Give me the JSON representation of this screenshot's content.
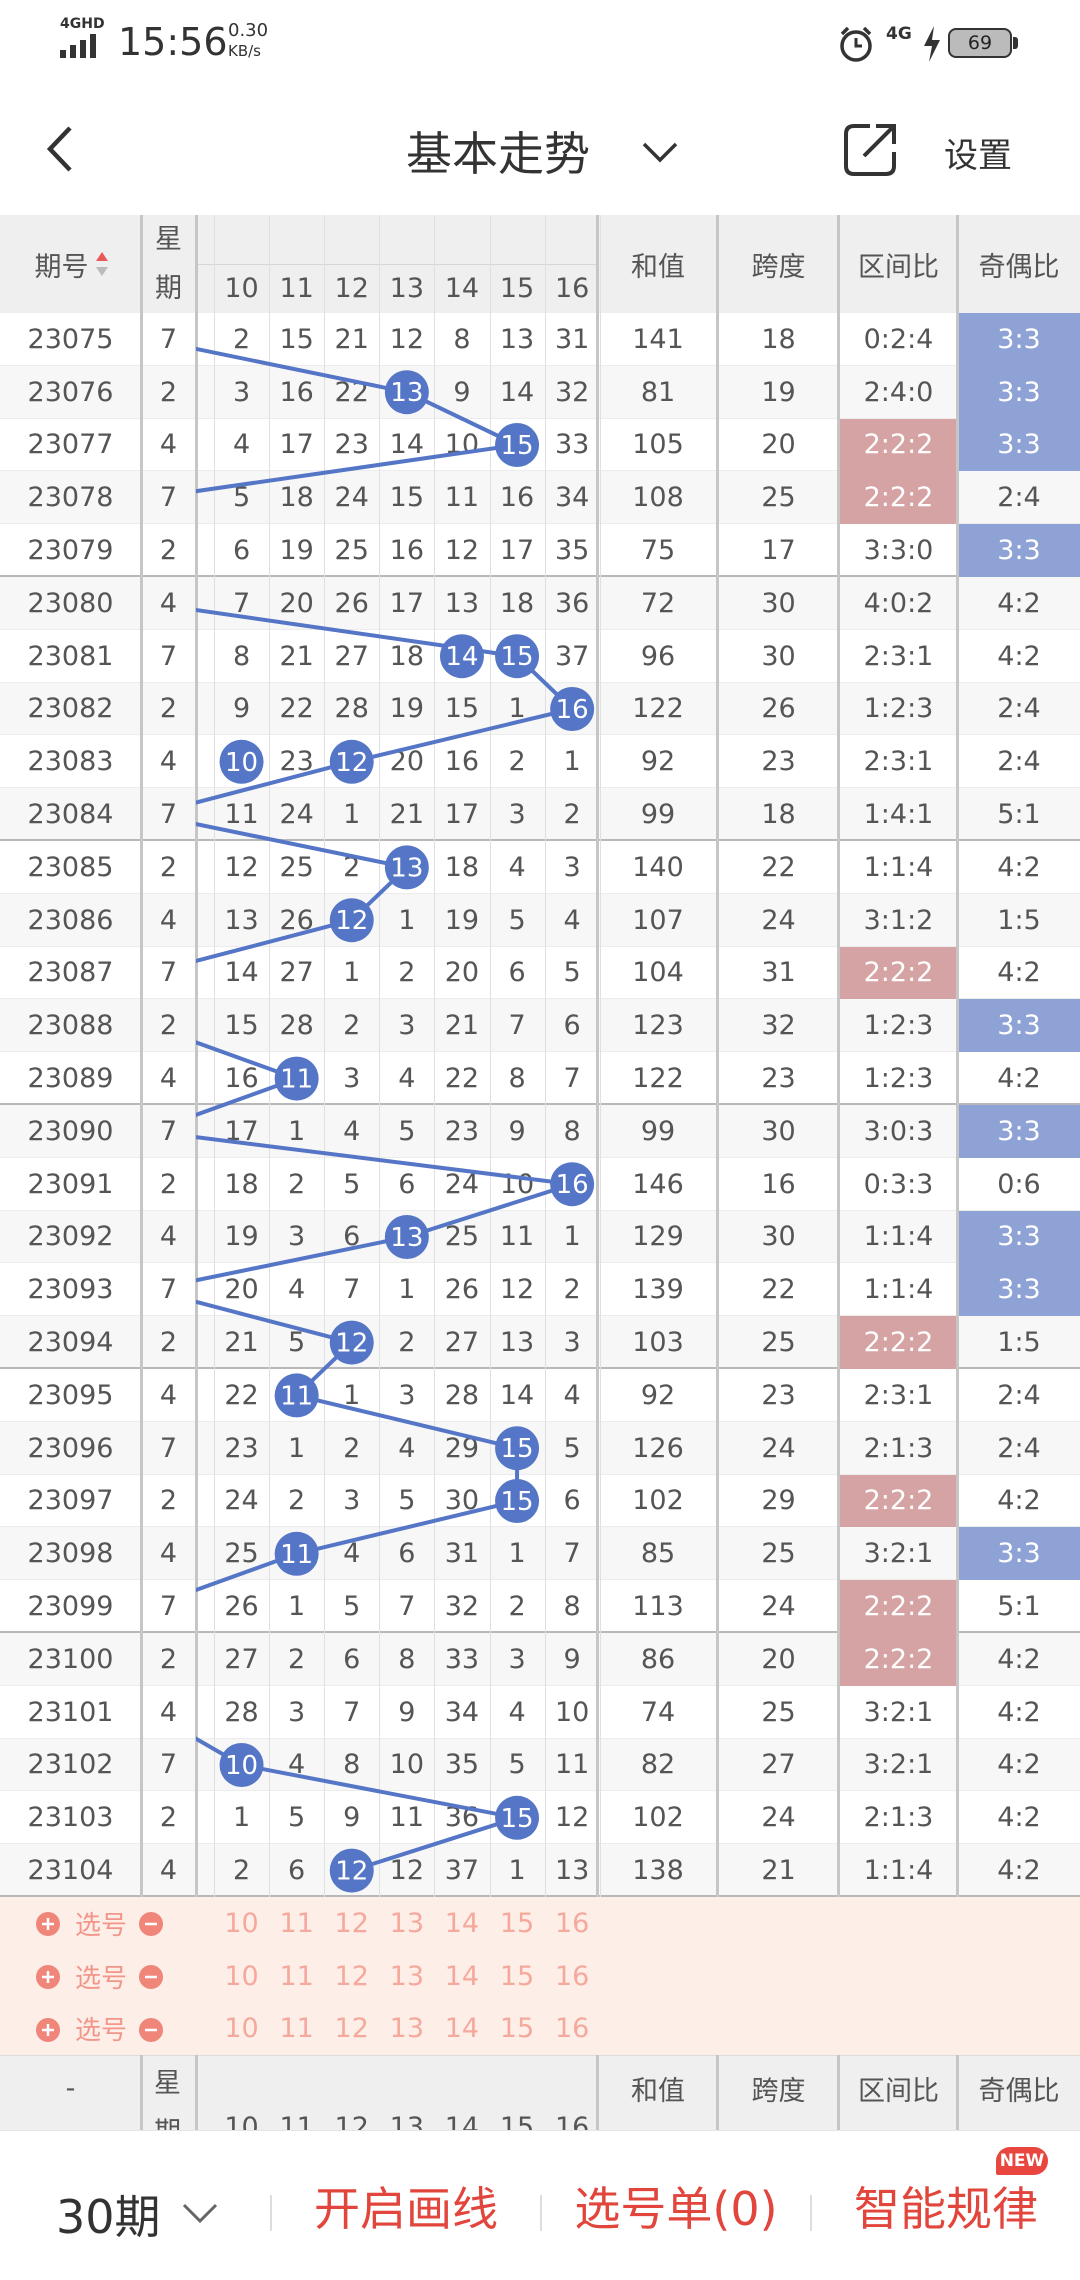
{
  "status_bar": {
    "network": "4GHD",
    "time": "15:56",
    "speed": "0.30",
    "speed_unit": "KB/s",
    "network2": "4G",
    "battery": "69"
  },
  "nav": {
    "title": "基本走势",
    "action": "设置"
  },
  "table": {
    "headers": {
      "issue": "期号",
      "weekday": "星期",
      "sum": "和值",
      "span": "跨度",
      "zone_ratio": "区间比",
      "odd_even": "奇偶比"
    },
    "number_columns": [
      10,
      11,
      12,
      13,
      14,
      15,
      16
    ],
    "rows": [
      {
        "issue": 23075,
        "weekday": 7,
        "numbers": [
          2,
          15,
          21,
          12,
          8,
          13,
          31
        ],
        "sum": 141,
        "span": 18,
        "zone_ratio": "0:2:4",
        "odd_even": "3:3"
      },
      {
        "issue": 23076,
        "weekday": 2,
        "numbers": [
          3,
          16,
          22,
          13,
          9,
          14,
          32
        ],
        "sum": 81,
        "span": 19,
        "zone_ratio": "2:4:0",
        "odd_even": "3:3"
      },
      {
        "issue": 23077,
        "weekday": 4,
        "numbers": [
          4,
          17,
          23,
          14,
          10,
          15,
          33
        ],
        "sum": 105,
        "span": 20,
        "zone_ratio": "2:2:2",
        "odd_even": "3:3"
      },
      {
        "issue": 23078,
        "weekday": 7,
        "numbers": [
          5,
          18,
          24,
          15,
          11,
          16,
          34
        ],
        "sum": 108,
        "span": 25,
        "zone_ratio": "2:2:2",
        "odd_even": "2:4"
      },
      {
        "issue": 23079,
        "weekday": 2,
        "numbers": [
          6,
          19,
          25,
          16,
          12,
          17,
          35
        ],
        "sum": 75,
        "span": 17,
        "zone_ratio": "3:3:0",
        "odd_even": "3:3"
      },
      {
        "issue": 23080,
        "weekday": 4,
        "numbers": [
          7,
          20,
          26,
          17,
          13,
          18,
          36
        ],
        "sum": 72,
        "span": 30,
        "zone_ratio": "4:0:2",
        "odd_even": "4:2"
      },
      {
        "issue": 23081,
        "weekday": 7,
        "numbers": [
          8,
          21,
          27,
          18,
          14,
          15,
          37
        ],
        "sum": 96,
        "span": 30,
        "zone_ratio": "2:3:1",
        "odd_even": "4:2"
      },
      {
        "issue": 23082,
        "weekday": 2,
        "numbers": [
          9,
          22,
          28,
          19,
          15,
          1,
          16
        ],
        "sum": 122,
        "span": 26,
        "zone_ratio": "1:2:3",
        "odd_even": "2:4"
      },
      {
        "issue": 23083,
        "weekday": 4,
        "numbers": [
          10,
          23,
          12,
          20,
          16,
          2,
          1
        ],
        "sum": 92,
        "span": 23,
        "zone_ratio": "2:3:1",
        "odd_even": "2:4"
      },
      {
        "issue": 23084,
        "weekday": 7,
        "numbers": [
          11,
          24,
          1,
          21,
          17,
          3,
          2
        ],
        "sum": 99,
        "span": 18,
        "zone_ratio": "1:4:1",
        "odd_even": "5:1"
      },
      {
        "issue": 23085,
        "weekday": 2,
        "numbers": [
          12,
          25,
          2,
          13,
          18,
          4,
          3
        ],
        "sum": 140,
        "span": 22,
        "zone_ratio": "1:1:4",
        "odd_even": "4:2"
      },
      {
        "issue": 23086,
        "weekday": 4,
        "numbers": [
          13,
          26,
          12,
          1,
          19,
          5,
          4
        ],
        "sum": 107,
        "span": 24,
        "zone_ratio": "3:1:2",
        "odd_even": "1:5"
      },
      {
        "issue": 23087,
        "weekday": 7,
        "numbers": [
          14,
          27,
          1,
          2,
          20,
          6,
          5
        ],
        "sum": 104,
        "span": 31,
        "zone_ratio": "2:2:2",
        "odd_even": "4:2"
      },
      {
        "issue": 23088,
        "weekday": 2,
        "numbers": [
          15,
          28,
          2,
          3,
          21,
          7,
          6
        ],
        "sum": 123,
        "span": 32,
        "zone_ratio": "1:2:3",
        "odd_even": "3:3"
      },
      {
        "issue": 23089,
        "weekday": 4,
        "numbers": [
          16,
          11,
          3,
          4,
          22,
          8,
          7
        ],
        "sum": 122,
        "span": 23,
        "zone_ratio": "1:2:3",
        "odd_even": "4:2"
      },
      {
        "issue": 23090,
        "weekday": 7,
        "numbers": [
          17,
          1,
          4,
          5,
          23,
          9,
          8
        ],
        "sum": 99,
        "span": 30,
        "zone_ratio": "3:0:3",
        "odd_even": "3:3"
      },
      {
        "issue": 23091,
        "weekday": 2,
        "numbers": [
          18,
          2,
          5,
          6,
          24,
          10,
          16
        ],
        "sum": 146,
        "span": 16,
        "zone_ratio": "0:3:3",
        "odd_even": "0:6"
      },
      {
        "issue": 23092,
        "weekday": 4,
        "numbers": [
          19,
          3,
          6,
          13,
          25,
          11,
          1
        ],
        "sum": 129,
        "span": 30,
        "zone_ratio": "1:1:4",
        "odd_even": "3:3"
      },
      {
        "issue": 23093,
        "weekday": 7,
        "numbers": [
          20,
          4,
          7,
          1,
          26,
          12,
          2
        ],
        "sum": 139,
        "span": 22,
        "zone_ratio": "1:1:4",
        "odd_even": "3:3"
      },
      {
        "issue": 23094,
        "weekday": 2,
        "numbers": [
          21,
          5,
          12,
          2,
          27,
          13,
          3
        ],
        "sum": 103,
        "span": 25,
        "zone_ratio": "2:2:2",
        "odd_even": "1:5"
      },
      {
        "issue": 23095,
        "weekday": 4,
        "numbers": [
          22,
          11,
          1,
          3,
          28,
          14,
          4
        ],
        "sum": 92,
        "span": 23,
        "zone_ratio": "2:3:1",
        "odd_even": "2:4"
      },
      {
        "issue": 23096,
        "weekday": 7,
        "numbers": [
          23,
          1,
          2,
          4,
          29,
          15,
          5
        ],
        "sum": 126,
        "span": 24,
        "zone_ratio": "2:1:3",
        "odd_even": "2:4"
      },
      {
        "issue": 23097,
        "weekday": 2,
        "numbers": [
          24,
          2,
          3,
          5,
          30,
          15,
          6
        ],
        "sum": 102,
        "span": 29,
        "zone_ratio": "2:2:2",
        "odd_even": "4:2"
      },
      {
        "issue": 23098,
        "weekday": 4,
        "numbers": [
          25,
          11,
          4,
          6,
          31,
          1,
          7
        ],
        "sum": 85,
        "span": 25,
        "zone_ratio": "3:2:1",
        "odd_even": "3:3"
      },
      {
        "issue": 23099,
        "weekday": 7,
        "numbers": [
          26,
          1,
          5,
          7,
          32,
          2,
          8
        ],
        "sum": 113,
        "span": 24,
        "zone_ratio": "2:2:2",
        "odd_even": "5:1"
      },
      {
        "issue": 23100,
        "weekday": 2,
        "numbers": [
          27,
          2,
          6,
          8,
          33,
          3,
          9
        ],
        "sum": 86,
        "span": 20,
        "zone_ratio": "2:2:2",
        "odd_even": "4:2"
      },
      {
        "issue": 23101,
        "weekday": 4,
        "numbers": [
          28,
          3,
          7,
          9,
          34,
          4,
          10
        ],
        "sum": 74,
        "span": 25,
        "zone_ratio": "3:2:1",
        "odd_even": "4:2"
      },
      {
        "issue": 23102,
        "weekday": 7,
        "numbers": [
          10,
          4,
          8,
          10,
          35,
          5,
          11
        ],
        "sum": 82,
        "span": 27,
        "zone_ratio": "3:2:1",
        "odd_even": "4:2"
      },
      {
        "issue": 23103,
        "weekday": 2,
        "numbers": [
          1,
          5,
          9,
          11,
          36,
          15,
          12
        ],
        "sum": 102,
        "span": 24,
        "zone_ratio": "2:1:3",
        "odd_even": "4:2"
      },
      {
        "issue": 23104,
        "weekday": 4,
        "numbers": [
          2,
          6,
          12,
          12,
          37,
          1,
          13
        ],
        "sum": 138,
        "span": 21,
        "zone_ratio": "1:1:4",
        "odd_even": "4:2"
      }
    ]
  },
  "pick_rows": {
    "label": "选号",
    "count": 3
  },
  "footer_header": {
    "issue": "-"
  },
  "bottom_bar": {
    "periods": "30期",
    "draw_lines": "开启画线",
    "pick_list": "选号单(0)",
    "smart_rules": "智能规律",
    "badge": "NEW"
  }
}
